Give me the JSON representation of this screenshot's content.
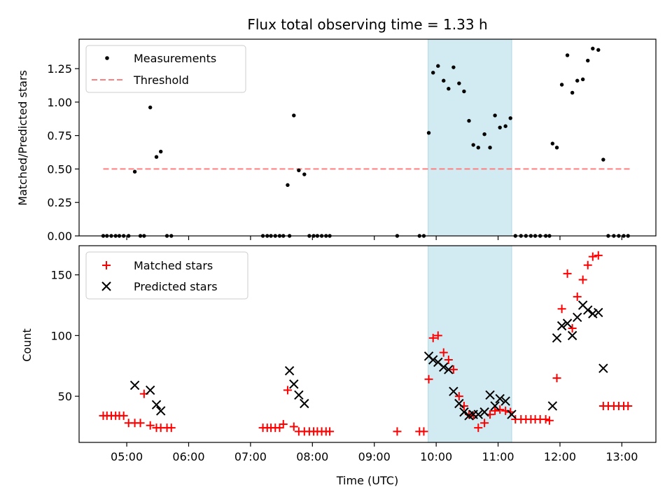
{
  "chart_data": [
    {
      "type": "scatter",
      "title": "Flux total observing time = 1.33 h",
      "xlabel": "",
      "ylabel": "Matched/Predicted stars",
      "x_axis": "time (UTC, hours)",
      "xlim": [
        4.23,
        13.55
      ],
      "ylim": [
        0.0,
        1.47
      ],
      "yticks": [
        0.0,
        0.25,
        0.5,
        0.75,
        1.0,
        1.25
      ],
      "ytick_labels": [
        "0.00",
        "0.25",
        "0.50",
        "0.75",
        "1.00",
        "1.25"
      ],
      "xticks": [
        5,
        6,
        7,
        8,
        9,
        10,
        11,
        12,
        13
      ],
      "xtick_labels": [
        "05:00",
        "06:00",
        "07:00",
        "08:00",
        "09:00",
        "10:00",
        "11:00",
        "12:00",
        "13:00"
      ],
      "show_xtick_labels": false,
      "grid": false,
      "legend": "top-left",
      "shaded_interval": [
        9.87,
        11.22
      ],
      "shaded_color": "#add8e6",
      "threshold": {
        "name": "Threshold",
        "y": 0.5,
        "x": [
          4.62,
          13.13
        ],
        "color": "#ff7f7f",
        "style": "dashed"
      },
      "series": [
        {
          "name": "Measurements",
          "marker": "dot",
          "color": "#000000",
          "x": [
            4.62,
            4.68,
            4.75,
            4.82,
            4.88,
            4.95,
            5.03,
            5.13,
            5.22,
            5.28,
            5.38,
            5.48,
            5.55,
            5.65,
            5.72,
            7.2,
            7.27,
            7.33,
            7.4,
            7.47,
            7.53,
            7.6,
            7.63,
            7.7,
            7.78,
            7.87,
            7.95,
            8.02,
            8.08,
            8.15,
            8.22,
            8.28,
            9.37,
            9.73,
            9.8,
            9.88,
            9.95,
            10.03,
            10.12,
            10.2,
            10.28,
            10.37,
            10.45,
            10.53,
            10.6,
            10.68,
            10.78,
            10.87,
            10.95,
            11.03,
            11.12,
            11.2,
            11.28,
            11.37,
            11.45,
            11.53,
            11.6,
            11.68,
            11.77,
            11.83,
            11.88,
            11.95,
            12.03,
            12.12,
            12.2,
            12.28,
            12.37,
            12.45,
            12.53,
            12.62,
            12.7,
            12.78,
            12.87,
            12.95,
            13.03,
            13.1
          ],
          "y": [
            0,
            0,
            0,
            0,
            0,
            0,
            0,
            0.48,
            0,
            0,
            0.96,
            0.59,
            0.63,
            0,
            0,
            0,
            0,
            0,
            0,
            0,
            0,
            0.38,
            0,
            0.9,
            0.49,
            0.46,
            0,
            0,
            0,
            0,
            0,
            0,
            0,
            0,
            0,
            0.77,
            1.22,
            1.27,
            1.16,
            1.1,
            1.26,
            1.14,
            1.08,
            0.86,
            0.68,
            0.66,
            0.76,
            0.66,
            0.9,
            0.81,
            0.82,
            0.88,
            0,
            0,
            0,
            0,
            0,
            0,
            0,
            0,
            0.69,
            0.66,
            1.13,
            1.35,
            1.07,
            1.16,
            1.17,
            1.31,
            1.4,
            1.39,
            0.57,
            0,
            0,
            0,
            0,
            0
          ]
        }
      ]
    },
    {
      "type": "scatter",
      "title": "",
      "xlabel": "Time (UTC)",
      "ylabel": "Count",
      "x_axis": "time (UTC, hours)",
      "xlim": [
        4.23,
        13.55
      ],
      "ylim": [
        12,
        174
      ],
      "yticks": [
        50,
        100,
        150
      ],
      "ytick_labels": [
        "50",
        "100",
        "150"
      ],
      "xticks": [
        5,
        6,
        7,
        8,
        9,
        10,
        11,
        12,
        13
      ],
      "xtick_labels": [
        "05:00",
        "06:00",
        "07:00",
        "08:00",
        "09:00",
        "10:00",
        "11:00",
        "12:00",
        "13:00"
      ],
      "show_xtick_labels": true,
      "grid": false,
      "legend": "top-left",
      "shaded_interval": [
        9.87,
        11.22
      ],
      "shaded_color": "#add8e6",
      "series": [
        {
          "name": "Matched stars",
          "marker": "plus",
          "color": "#ff0000",
          "x": [
            4.62,
            4.68,
            4.75,
            4.82,
            4.88,
            4.95,
            5.03,
            5.13,
            5.22,
            5.28,
            5.38,
            5.48,
            5.55,
            5.65,
            5.72,
            7.2,
            7.27,
            7.33,
            7.4,
            7.47,
            7.53,
            7.6,
            7.7,
            7.78,
            7.87,
            7.95,
            8.02,
            8.08,
            8.15,
            8.22,
            8.28,
            9.37,
            9.73,
            9.8,
            9.88,
            9.95,
            10.03,
            10.12,
            10.2,
            10.28,
            10.37,
            10.45,
            10.53,
            10.6,
            10.68,
            10.78,
            10.87,
            10.95,
            11.03,
            11.12,
            11.2,
            11.28,
            11.37,
            11.45,
            11.53,
            11.6,
            11.68,
            11.77,
            11.83,
            11.95,
            12.03,
            12.12,
            12.2,
            12.28,
            12.37,
            12.45,
            12.53,
            12.62,
            12.7,
            12.78,
            12.87,
            12.95,
            13.03,
            13.1
          ],
          "y": [
            34,
            34,
            34,
            34,
            34,
            34,
            28,
            28,
            28,
            52,
            26,
            24,
            24,
            24,
            24,
            24,
            24,
            24,
            24,
            24,
            27,
            55,
            25,
            21,
            21,
            21,
            21,
            21,
            21,
            21,
            21,
            21,
            21,
            21,
            64,
            98,
            100,
            86,
            80,
            72,
            50,
            42,
            35,
            34,
            24,
            28,
            35,
            38,
            39,
            38,
            37,
            31,
            31,
            31,
            31,
            31,
            31,
            31,
            30,
            65,
            122,
            151,
            106,
            132,
            146,
            158,
            165,
            166,
            42,
            42,
            42,
            42,
            42,
            42
          ]
        },
        {
          "name": "Predicted stars",
          "marker": "x",
          "color": "#000000",
          "x": [
            5.13,
            5.38,
            5.48,
            5.55,
            7.63,
            7.7,
            7.78,
            7.87,
            9.88,
            9.95,
            10.03,
            10.12,
            10.2,
            10.28,
            10.37,
            10.45,
            10.53,
            10.6,
            10.68,
            10.78,
            10.87,
            10.95,
            11.03,
            11.12,
            11.22,
            11.88,
            11.95,
            12.03,
            12.12,
            12.2,
            12.28,
            12.37,
            12.45,
            12.53,
            12.62,
            12.7
          ],
          "y": [
            59,
            55,
            43,
            38,
            71,
            60,
            51,
            44,
            83,
            80,
            78,
            74,
            72,
            54,
            44,
            37,
            34,
            35,
            35,
            37,
            51,
            42,
            48,
            46,
            35,
            42,
            98,
            108,
            110,
            100,
            115,
            125,
            121,
            118,
            119,
            73
          ]
        }
      ]
    }
  ]
}
